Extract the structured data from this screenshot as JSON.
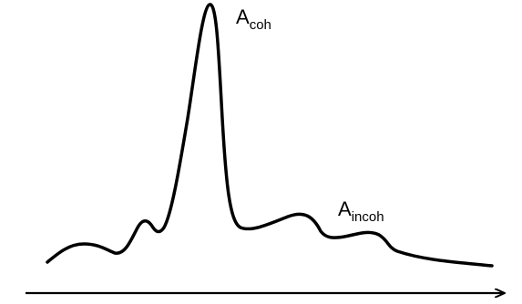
{
  "labels": {
    "coherent": {
      "main": "A",
      "sub": "coh"
    },
    "incoherent": {
      "main": "A",
      "sub": "incoh"
    }
  },
  "colors": {
    "curve": "#000000",
    "axis": "#000000",
    "text": "#000000"
  }
}
